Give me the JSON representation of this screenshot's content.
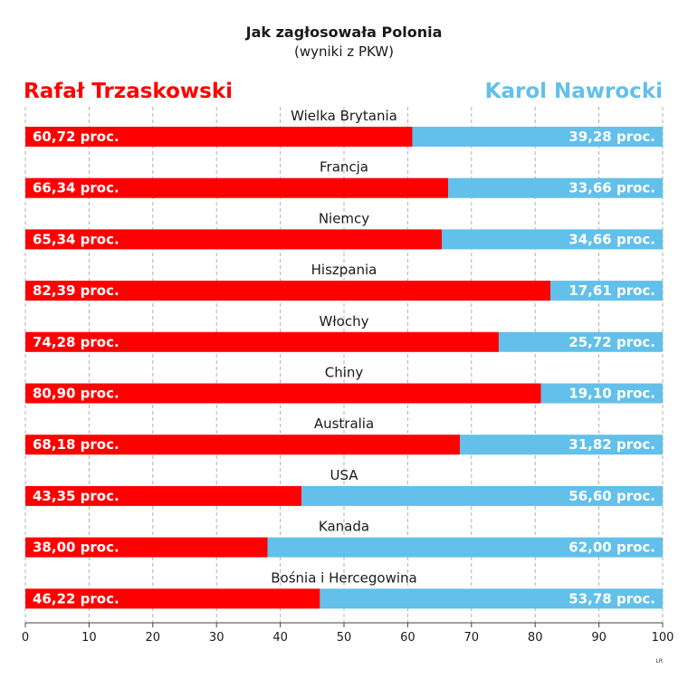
{
  "header": {
    "title": "Jak zagłosowała Polonia",
    "subtitle": "(wyniki z PKW)"
  },
  "legend": {
    "left_label": "Rafał Trzaskowski",
    "right_label": "Karol Nawrocki"
  },
  "colors": {
    "trzaskowski": "#ff0000",
    "nawrocki": "#62c0ea",
    "grid": "#b0b0b0",
    "axis": "#444444",
    "text": "#1a1a1a"
  },
  "credit": "LR",
  "chart_data": {
    "type": "bar",
    "orientation": "horizontal",
    "stacked": true,
    "xlim": [
      0,
      100
    ],
    "xticks": [
      "0",
      "10",
      "20",
      "30",
      "40",
      "50",
      "60",
      "70",
      "80",
      "90",
      "100"
    ],
    "grid": "vertical",
    "categories": [
      "Wielka Brytania",
      "Francja",
      "Niemcy",
      "Hiszpania",
      "Włochy",
      "Chiny",
      "Australia",
      "USA",
      "Kanada",
      "Bośnia i Hercegowina"
    ],
    "series": [
      {
        "name": "Rafał Trzaskowski",
        "values": [
          60.72,
          66.34,
          65.34,
          82.39,
          74.28,
          80.9,
          68.18,
          43.35,
          38.0,
          46.22
        ],
        "labels": [
          "60,72 proc.",
          "66,34 proc.",
          "65,34 proc.",
          "82,39 proc.",
          "74,28 proc.",
          "80,90 proc.",
          "68,18 proc.",
          "43,35 proc.",
          "38,00 proc.",
          "46,22 proc."
        ]
      },
      {
        "name": "Karol Nawrocki",
        "values": [
          39.28,
          33.66,
          34.66,
          17.61,
          25.72,
          19.1,
          31.82,
          56.6,
          62.0,
          53.78
        ],
        "labels": [
          "39,28 proc.",
          "33,66 proc.",
          "34,66 proc.",
          "17,61 proc.",
          "25,72 proc.",
          "19,10 proc.",
          "31,82 proc.",
          "56,60 proc.",
          "62,00 proc.",
          "53,78 proc."
        ]
      }
    ]
  }
}
